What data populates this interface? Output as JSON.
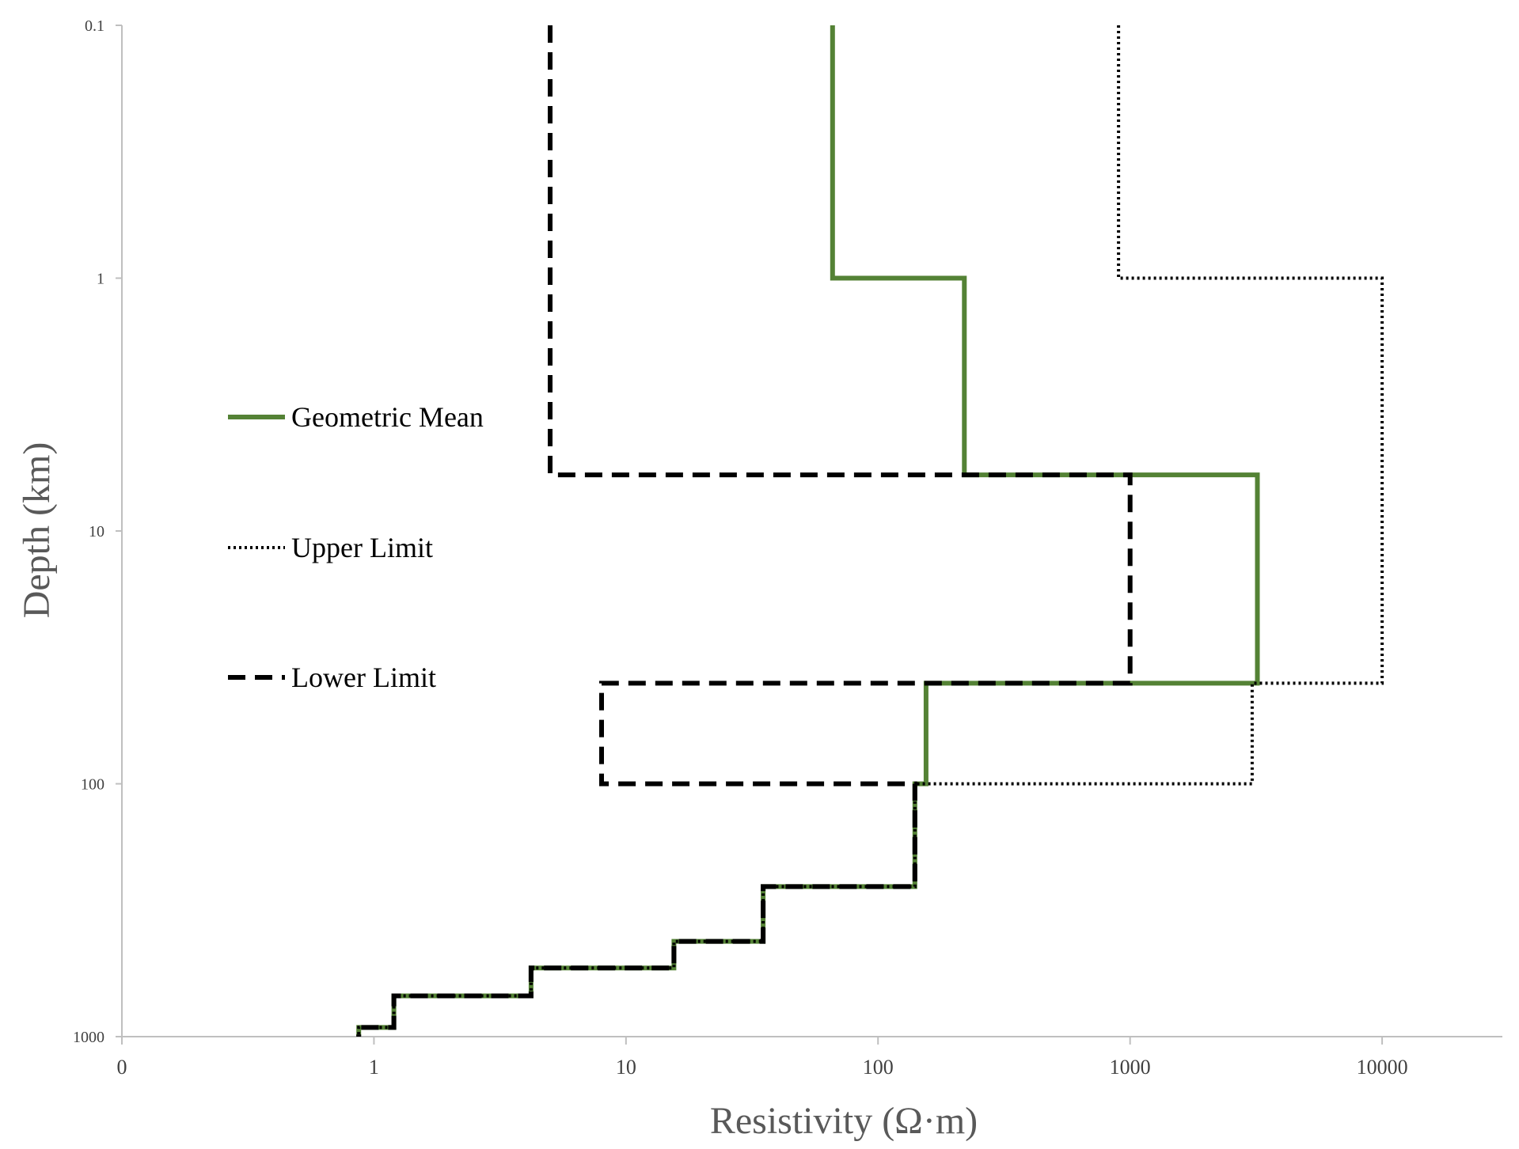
{
  "chart_data": {
    "type": "line",
    "xlabel": "Resistivity (Ω·m)",
    "ylabel": "Depth (km)",
    "x_scale": "log",
    "y_scale": "log",
    "y_inverted": true,
    "xlim": [
      0.1,
      30000
    ],
    "ylim": [
      0.1,
      1000
    ],
    "x_ticks": [
      {
        "value": 0.1,
        "label": "0"
      },
      {
        "value": 1,
        "label": "1"
      },
      {
        "value": 10,
        "label": "10"
      },
      {
        "value": 100,
        "label": "100"
      },
      {
        "value": 1000,
        "label": "1000"
      },
      {
        "value": 10000,
        "label": "10000"
      }
    ],
    "y_ticks": [
      {
        "value": 0.1,
        "label": "0.1"
      },
      {
        "value": 1,
        "label": "1"
      },
      {
        "value": 10,
        "label": "10"
      },
      {
        "value": 100,
        "label": "100"
      },
      {
        "value": 1000,
        "label": "1000"
      }
    ],
    "grid": false,
    "legend_position": "left",
    "series": [
      {
        "name": "Geometric Mean",
        "style": "solid",
        "color": "#548235",
        "points": [
          [
            66,
            0.1
          ],
          [
            66,
            1
          ],
          [
            220,
            1
          ],
          [
            220,
            6
          ],
          [
            3200,
            6
          ],
          [
            3200,
            40
          ],
          [
            155,
            40
          ],
          [
            155,
            100
          ],
          [
            140,
            100
          ],
          [
            140,
            255
          ],
          [
            35,
            255
          ],
          [
            35,
            420
          ],
          [
            15.5,
            420
          ],
          [
            15.5,
            535
          ],
          [
            4.2,
            535
          ],
          [
            4.2,
            690
          ],
          [
            1.2,
            690
          ],
          [
            1.2,
            920
          ],
          [
            0.87,
            920
          ],
          [
            0.87,
            1000
          ]
        ]
      },
      {
        "name": "Upper Limit",
        "style": "dotted",
        "color": "#000000",
        "points": [
          [
            900,
            0.1
          ],
          [
            900,
            1
          ],
          [
            10000,
            1
          ],
          [
            10000,
            40
          ],
          [
            3050,
            40
          ],
          [
            3050,
            100
          ],
          [
            140,
            100
          ],
          [
            140,
            255
          ],
          [
            35,
            255
          ],
          [
            35,
            420
          ],
          [
            15.5,
            420
          ],
          [
            15.5,
            535
          ],
          [
            4.2,
            535
          ],
          [
            4.2,
            690
          ],
          [
            1.2,
            690
          ],
          [
            1.2,
            920
          ],
          [
            0.87,
            920
          ],
          [
            0.87,
            1000
          ]
        ]
      },
      {
        "name": "Lower Limit",
        "style": "dashed",
        "color": "#000000",
        "points": [
          [
            5,
            0.1
          ],
          [
            5,
            6
          ],
          [
            1000,
            6
          ],
          [
            1000,
            40
          ],
          [
            8,
            40
          ],
          [
            8,
            100
          ],
          [
            140,
            100
          ],
          [
            140,
            255
          ],
          [
            35,
            255
          ],
          [
            35,
            420
          ],
          [
            15.5,
            420
          ],
          [
            15.5,
            535
          ],
          [
            4.2,
            535
          ],
          [
            4.2,
            690
          ],
          [
            1.2,
            690
          ],
          [
            1.2,
            920
          ],
          [
            0.87,
            920
          ],
          [
            0.87,
            1000
          ]
        ]
      }
    ]
  }
}
